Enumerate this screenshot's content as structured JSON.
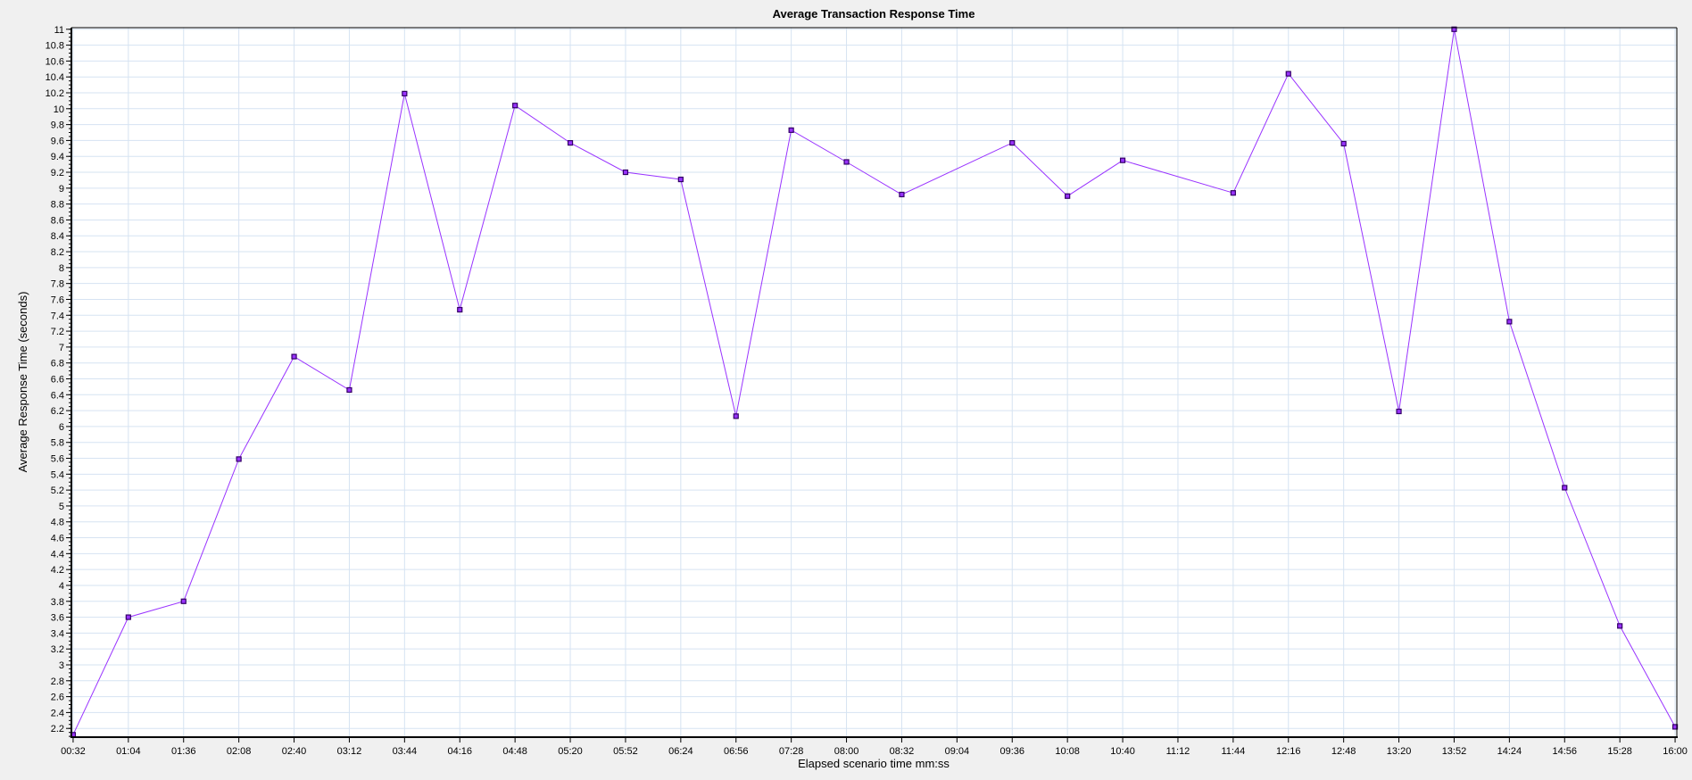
{
  "chart_data": {
    "type": "line",
    "title": "Average Transaction Response Time",
    "xlabel": "Elapsed scenario time mm:ss",
    "ylabel": "Average Response Time (seconds)",
    "xlim": [
      "00:31",
      "16:01"
    ],
    "ylim": [
      2.09,
      11.02
    ],
    "grid": true,
    "x_ticks": [
      "00:32",
      "01:04",
      "01:36",
      "02:08",
      "02:40",
      "03:12",
      "03:44",
      "04:16",
      "04:48",
      "05:20",
      "05:52",
      "06:24",
      "06:56",
      "07:28",
      "08:00",
      "08:32",
      "09:04",
      "09:36",
      "10:08",
      "10:40",
      "11:12",
      "11:44",
      "12:16",
      "12:48",
      "13:20",
      "13:52",
      "14:24",
      "14:56",
      "15:28",
      "16:00"
    ],
    "y_ticks": [
      "2.2",
      "2.4",
      "2.6",
      "2.8",
      "3",
      "3.2",
      "3.4",
      "3.6",
      "3.8",
      "4",
      "4.2",
      "4.4",
      "4.6",
      "4.8",
      "5",
      "5.2",
      "5.4",
      "5.6",
      "5.8",
      "6",
      "6.2",
      "6.4",
      "6.6",
      "6.8",
      "7",
      "7.2",
      "7.4",
      "7.6",
      "7.8",
      "8",
      "8.2",
      "8.4",
      "8.6",
      "8.8",
      "9",
      "9.2",
      "9.4",
      "9.6",
      "9.8",
      "10",
      "10.2",
      "10.4",
      "10.6",
      "10.8",
      "11"
    ],
    "series": [
      {
        "color": "#9933ff",
        "marker_color": "#330066",
        "x": [
          "00:32",
          "01:04",
          "01:36",
          "02:08",
          "02:40",
          "03:12",
          "03:44",
          "04:16",
          "04:48",
          "05:20",
          "05:52",
          "06:24",
          "06:56",
          "07:28",
          "08:00",
          "08:32",
          "09:36",
          "10:08",
          "10:40",
          "11:44",
          "12:16",
          "12:48",
          "13:20",
          "13:52",
          "14:24",
          "14:56",
          "15:28",
          "16:00"
        ],
        "y": [
          2.12,
          3.6,
          3.8,
          5.59,
          6.88,
          6.46,
          10.19,
          7.47,
          10.04,
          9.57,
          9.2,
          9.11,
          6.13,
          9.73,
          9.33,
          8.92,
          9.57,
          8.9,
          9.35,
          8.94,
          10.44,
          9.56,
          6.19,
          11.0,
          7.32,
          5.23,
          3.49,
          2.22
        ]
      }
    ]
  }
}
